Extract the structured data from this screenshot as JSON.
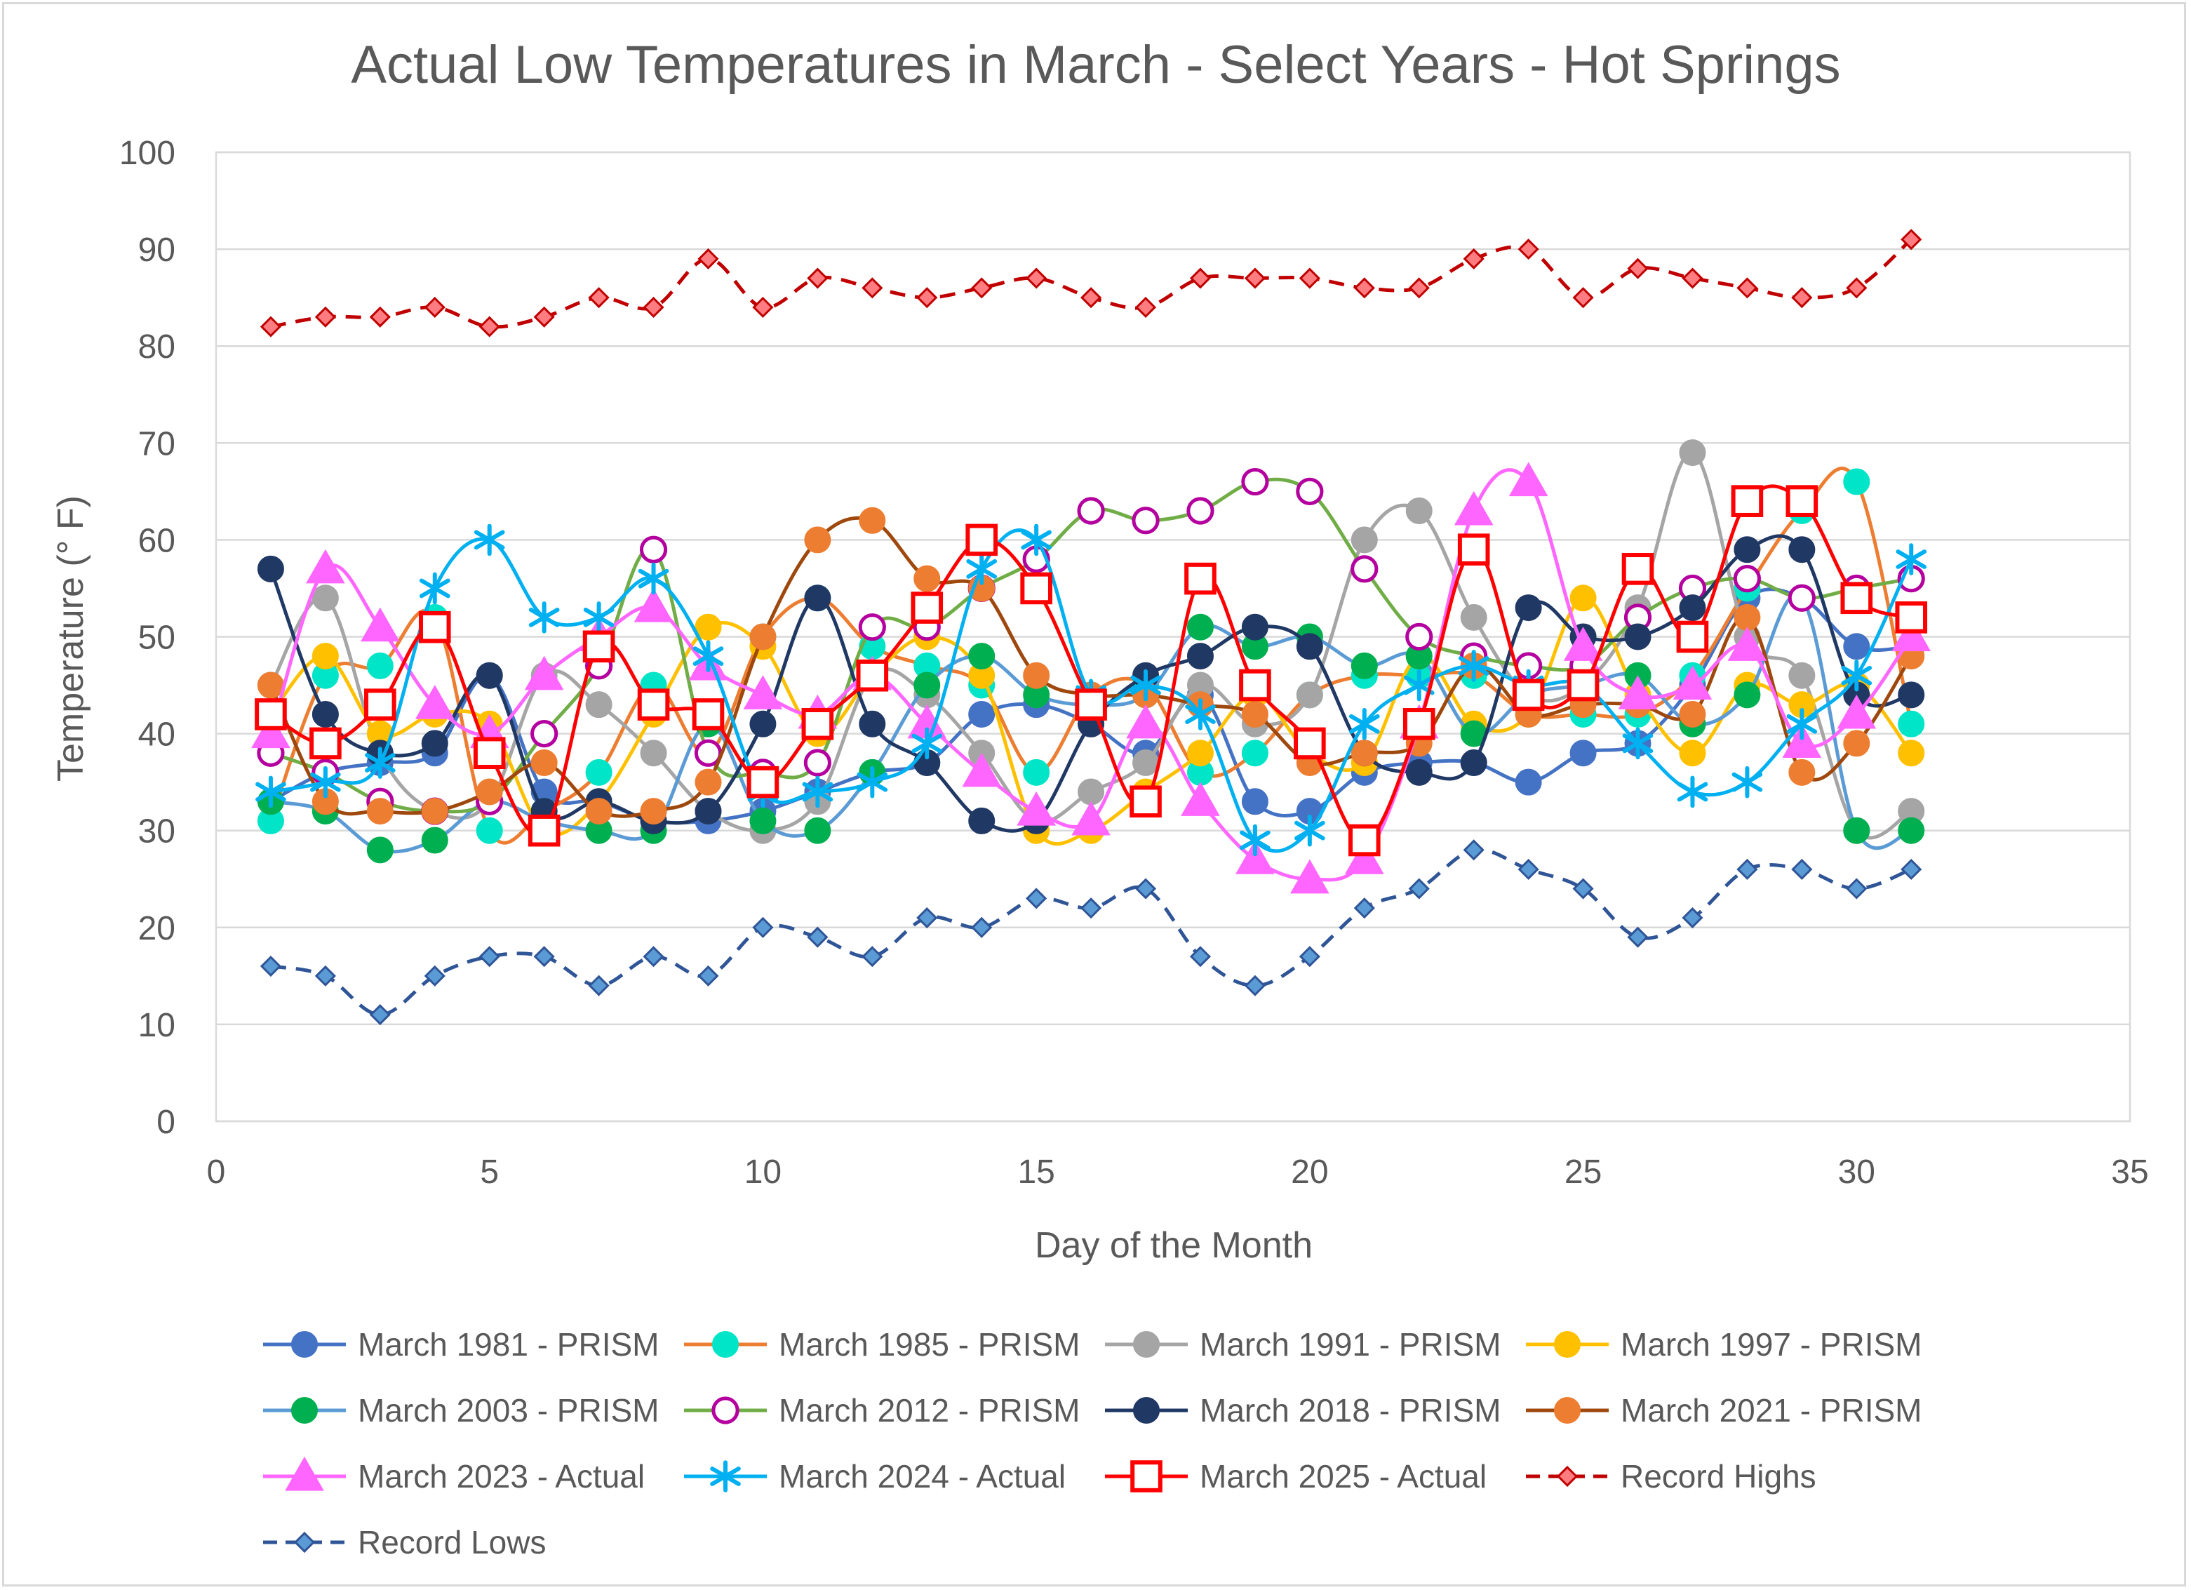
{
  "chart_data": {
    "type": "line",
    "title": "Actual Low Temperatures in March - Select Years - Hot Springs",
    "xlabel": "Day of the Month",
    "ylabel": "Temperature (° F)",
    "xlim": [
      0,
      35
    ],
    "ylim": [
      0,
      100
    ],
    "xticks": [
      0,
      5,
      10,
      15,
      20,
      25,
      30,
      35
    ],
    "yticks": [
      0,
      10,
      20,
      30,
      40,
      50,
      60,
      70,
      80,
      90,
      100
    ],
    "grid": true,
    "legend_position": "bottom",
    "x": [
      1,
      2,
      3,
      4,
      5,
      6,
      7,
      8,
      9,
      10,
      11,
      12,
      13,
      14,
      15,
      16,
      17,
      18,
      19,
      20,
      21,
      22,
      23,
      24,
      25,
      26,
      27,
      28,
      29,
      30,
      31
    ],
    "series": [
      {
        "name": "March 1981 - PRISM",
        "color": "#4472c4",
        "marker": "circle",
        "fill": "#4472c4",
        "dash": "",
        "values": [
          33,
          36,
          37,
          38,
          46,
          34,
          33,
          31,
          31,
          32,
          34,
          36,
          37,
          42,
          43,
          41,
          38,
          44,
          33,
          32,
          36,
          37,
          37,
          35,
          38,
          39,
          45,
          54,
          54,
          49,
          49
        ]
      },
      {
        "name": "March 1985 - PRISM",
        "color": "#ed7d31",
        "marker": "circle",
        "fill": "#00e5c8",
        "dash": "",
        "values": [
          31,
          46,
          47,
          52,
          30,
          32,
          36,
          45,
          38,
          50,
          54,
          49,
          47,
          45,
          36,
          44,
          45,
          36,
          38,
          44,
          46,
          46,
          46,
          42,
          42,
          42,
          46,
          55,
          63,
          66,
          41
        ]
      },
      {
        "name": "March 1991 - PRISM",
        "color": "#a5a5a5",
        "marker": "circle",
        "fill": "#a5a5a5",
        "dash": "",
        "values": [
          45,
          54,
          38,
          32,
          33,
          46,
          43,
          38,
          32,
          30,
          33,
          46,
          44,
          38,
          31,
          34,
          37,
          45,
          41,
          44,
          60,
          63,
          52,
          44,
          45,
          53,
          69,
          50,
          46,
          30,
          32
        ]
      },
      {
        "name": "March 1997 - PRISM",
        "color": "#ffc000",
        "marker": "circle",
        "fill": "#ffc000",
        "dash": "",
        "values": [
          42,
          48,
          40,
          42,
          41,
          30,
          33,
          42,
          51,
          49,
          40,
          46,
          50,
          46,
          30,
          30,
          34,
          38,
          44,
          38,
          37,
          48,
          41,
          42,
          54,
          44,
          38,
          45,
          43,
          45,
          38
        ]
      },
      {
        "name": "March 2003 - PRISM",
        "color": "#5b9bd5",
        "marker": "circle",
        "fill": "#00b050",
        "dash": "",
        "values": [
          33,
          32,
          28,
          29,
          33,
          31,
          30,
          30,
          41,
          31,
          30,
          36,
          45,
          48,
          44,
          43,
          44,
          51,
          49,
          50,
          47,
          48,
          40,
          44,
          45,
          46,
          41,
          44,
          54,
          30,
          30
        ]
      },
      {
        "name": "March 2012 - PRISM",
        "color": "#70ad47",
        "marker": "circle-open",
        "fill": "#ffffff",
        "dash": "",
        "values": [
          38,
          36,
          33,
          32,
          33,
          40,
          47,
          59,
          38,
          36,
          37,
          51,
          51,
          55,
          58,
          63,
          62,
          63,
          66,
          65,
          57,
          50,
          48,
          47,
          47,
          52,
          55,
          56,
          54,
          55,
          56
        ]
      },
      {
        "name": "March 2018 - PRISM",
        "color": "#203864",
        "marker": "circle",
        "fill": "#203864",
        "dash": "",
        "values": [
          57,
          42,
          38,
          39,
          46,
          32,
          33,
          31,
          32,
          41,
          54,
          41,
          37,
          31,
          31,
          41,
          46,
          48,
          51,
          49,
          38,
          36,
          37,
          53,
          50,
          50,
          53,
          59,
          59,
          44,
          44
        ]
      },
      {
        "name": "March 2021 - PRISM",
        "color": "#9e480e",
        "marker": "circle",
        "fill": "#ed7d31",
        "dash": "",
        "values": [
          45,
          33,
          32,
          32,
          34,
          37,
          32,
          32,
          35,
          50,
          60,
          62,
          56,
          55,
          46,
          44,
          44,
          43,
          42,
          37,
          38,
          39,
          47,
          42,
          43,
          43,
          42,
          52,
          36,
          39,
          48
        ]
      },
      {
        "name": "March 2023 - Actual",
        "color": "#ff66ff",
        "marker": "triangle",
        "fill": "#ff66ff",
        "dash": "",
        "values": [
          40,
          57,
          51,
          43,
          40,
          46,
          50,
          53,
          47,
          44,
          42,
          46,
          41,
          36,
          32,
          31,
          41,
          33,
          27,
          25,
          27,
          41,
          63,
          66,
          49,
          44,
          45,
          49,
          39,
          42,
          50
        ]
      },
      {
        "name": "March 2024 - Actual",
        "color": "#00b0f0",
        "marker": "star",
        "fill": "#00b0f0",
        "dash": "",
        "values": [
          34,
          35,
          37,
          55,
          60,
          52,
          52,
          56,
          48,
          34,
          34,
          35,
          39,
          57,
          60,
          44,
          45,
          42,
          29,
          30,
          41,
          45,
          47,
          45,
          45,
          39,
          34,
          35,
          41,
          46,
          58
        ]
      },
      {
        "name": "March 2025 - Actual",
        "color": "#ff0000",
        "marker": "square-open",
        "fill": "#ffffff",
        "dash": "",
        "values": [
          42,
          39,
          43,
          51,
          38,
          30,
          49,
          43,
          42,
          35,
          41,
          46,
          53,
          60,
          55,
          43,
          33,
          56,
          45,
          39,
          29,
          41,
          59,
          44,
          45,
          57,
          50,
          64,
          64,
          54,
          52
        ]
      },
      {
        "name": "Record Highs",
        "color": "#c00000",
        "marker": "diamond",
        "fill": "#ff7c80",
        "dash": "22,14",
        "values": [
          82,
          83,
          83,
          84,
          82,
          83,
          85,
          84,
          89,
          84,
          87,
          86,
          85,
          86,
          87,
          85,
          84,
          87,
          87,
          87,
          86,
          86,
          89,
          90,
          85,
          88,
          87,
          86,
          85,
          86,
          91
        ]
      },
      {
        "name": "Record Lows",
        "color": "#2f5597",
        "marker": "diamond",
        "fill": "#5b9bd5",
        "dash": "22,14",
        "values": [
          16,
          15,
          11,
          15,
          17,
          17,
          14,
          17,
          15,
          20,
          19,
          17,
          21,
          20,
          23,
          22,
          24,
          17,
          14,
          17,
          22,
          24,
          28,
          26,
          24,
          19,
          21,
          26,
          26,
          24,
          26
        ]
      }
    ]
  }
}
